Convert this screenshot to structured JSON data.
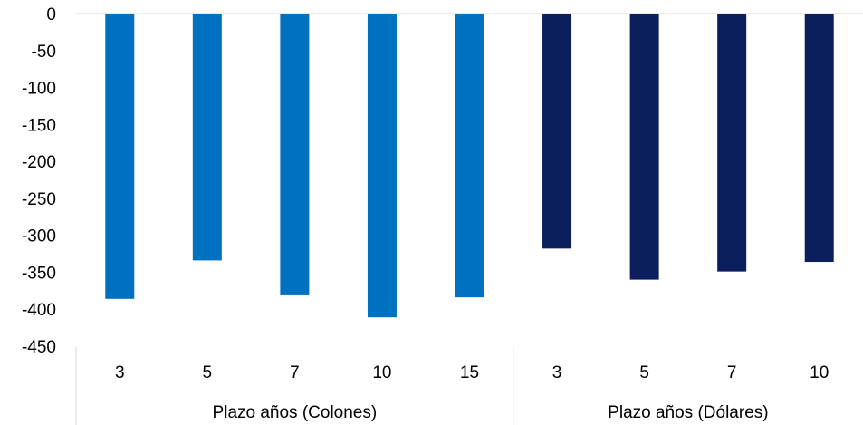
{
  "chart_data": {
    "type": "bar",
    "ylim": [
      -450,
      0
    ],
    "yticks": [
      "0",
      "-50",
      "-100",
      "-150",
      "-200",
      "-250",
      "-300",
      "-350",
      "-400",
      "-450"
    ],
    "ytick_values": [
      0,
      -50,
      -100,
      -150,
      -200,
      -250,
      -300,
      -350,
      -400,
      -450
    ],
    "grid": false,
    "groups": [
      {
        "label": "Plazo años (Colones)",
        "color": "#0070C0",
        "categories": [
          "3",
          "5",
          "7",
          "10",
          "15"
        ],
        "values": [
          -386,
          -334,
          -380,
          -411,
          -384
        ]
      },
      {
        "label": "Plazo años (Dólares)",
        "color": "#0B1F5C",
        "categories": [
          "3",
          "5",
          "7",
          "10"
        ],
        "values": [
          -318,
          -360,
          -349,
          -336
        ]
      }
    ]
  }
}
